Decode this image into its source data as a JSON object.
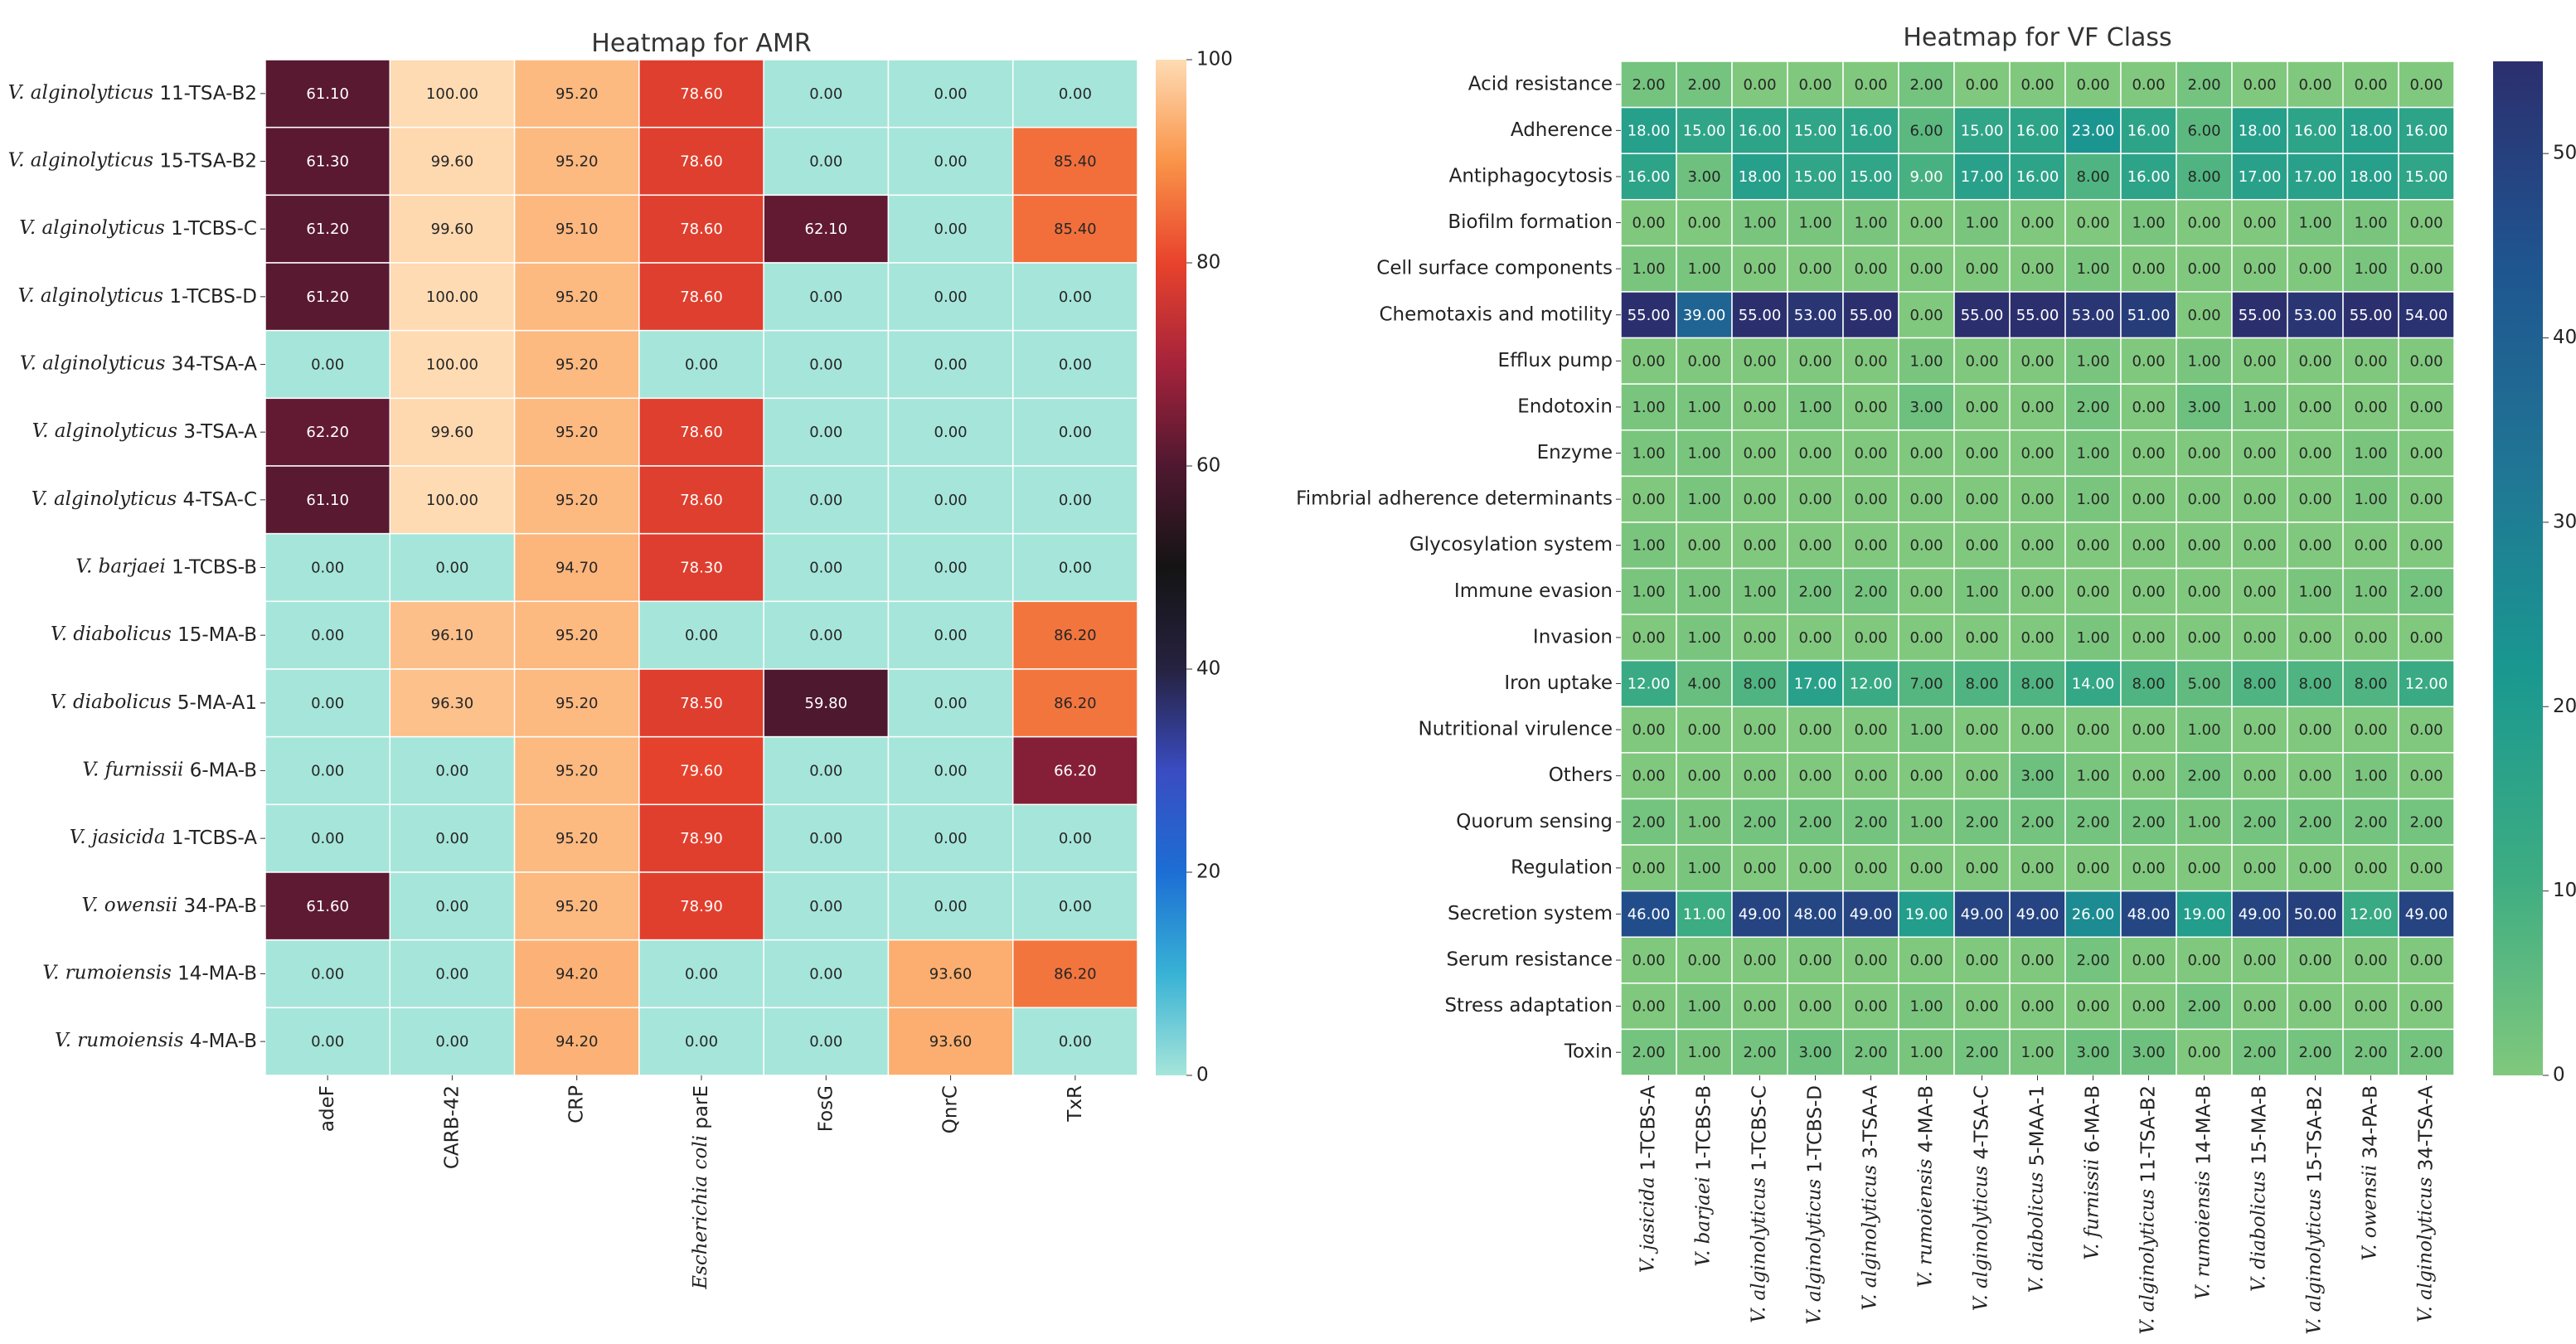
{
  "chart_data": [
    {
      "type": "heatmap",
      "title": "Heatmap for AMR",
      "colormap": "icefire",
      "vmin": 0,
      "vmax": 100,
      "colorbar_ticks": [
        0,
        20,
        40,
        60,
        80,
        100
      ],
      "rows": [
        [
          "V. alginolyticus",
          "11-TSA-B2"
        ],
        [
          "V. alginolyticus",
          "15-TSA-B2"
        ],
        [
          "V. alginolyticus",
          "1-TCBS-C"
        ],
        [
          "V. alginolyticus",
          "1-TCBS-D"
        ],
        [
          "V. alginolyticus",
          "34-TSA-A"
        ],
        [
          "V. alginolyticus",
          "3-TSA-A"
        ],
        [
          "V. alginolyticus",
          "4-TSA-C"
        ],
        [
          "V. barjaei",
          "1-TCBS-B"
        ],
        [
          "V. diabolicus",
          "15-MA-B"
        ],
        [
          "V. diabolicus",
          "5-MA-A1"
        ],
        [
          "V. furnissii",
          "6-MA-B"
        ],
        [
          "V. jasicida",
          "1-TCBS-A"
        ],
        [
          "V. owensii",
          "34-PA-B"
        ],
        [
          "V. rumoiensis",
          "14-MA-B"
        ],
        [
          "V. rumoiensis",
          "4-MA-B"
        ]
      ],
      "columns": [
        [
          "",
          "adeF"
        ],
        [
          "",
          "CARB-42"
        ],
        [
          "",
          "CRP"
        ],
        [
          "Escherichia coli",
          "parE"
        ],
        [
          "",
          "FosG"
        ],
        [
          "",
          "QnrC"
        ],
        [
          "",
          "TxR"
        ]
      ],
      "values": [
        [
          61.1,
          100.0,
          95.2,
          78.6,
          0.0,
          0.0,
          0.0
        ],
        [
          61.3,
          99.6,
          95.2,
          78.6,
          0.0,
          0.0,
          85.4
        ],
        [
          61.2,
          99.6,
          95.1,
          78.6,
          62.1,
          0.0,
          85.4
        ],
        [
          61.2,
          100.0,
          95.2,
          78.6,
          0.0,
          0.0,
          0.0
        ],
        [
          0.0,
          100.0,
          95.2,
          0.0,
          0.0,
          0.0,
          0.0
        ],
        [
          62.2,
          99.6,
          95.2,
          78.6,
          0.0,
          0.0,
          0.0
        ],
        [
          61.1,
          100.0,
          95.2,
          78.6,
          0.0,
          0.0,
          0.0
        ],
        [
          0.0,
          0.0,
          94.7,
          78.3,
          0.0,
          0.0,
          0.0
        ],
        [
          0.0,
          96.1,
          95.2,
          0.0,
          0.0,
          0.0,
          86.2
        ],
        [
          0.0,
          96.3,
          95.2,
          78.5,
          59.8,
          0.0,
          86.2
        ],
        [
          0.0,
          0.0,
          95.2,
          79.6,
          0.0,
          0.0,
          66.2
        ],
        [
          0.0,
          0.0,
          95.2,
          78.9,
          0.0,
          0.0,
          0.0
        ],
        [
          61.6,
          0.0,
          95.2,
          78.9,
          0.0,
          0.0,
          0.0
        ],
        [
          0.0,
          0.0,
          94.2,
          0.0,
          0.0,
          93.6,
          86.2
        ],
        [
          0.0,
          0.0,
          94.2,
          0.0,
          0.0,
          93.6,
          0.0
        ]
      ]
    },
    {
      "type": "heatmap",
      "title": "Heatmap for VF Class",
      "colormap": "crest",
      "vmin": 0,
      "vmax": 55,
      "colorbar_ticks": [
        0,
        10,
        20,
        30,
        40,
        50
      ],
      "rows": [
        "Acid resistance",
        "Adherence",
        "Antiphagocytosis",
        "Biofilm formation",
        "Cell surface components",
        "Chemotaxis and motility",
        "Efflux pump",
        "Endotoxin",
        "Enzyme",
        "Fimbrial adherence determinants",
        "Glycosylation system",
        "Immune evasion",
        "Invasion",
        "Iron uptake",
        "Nutritional virulence",
        "Others",
        "Quorum sensing",
        "Regulation",
        "Secretion system",
        "Serum resistance",
        "Stress adaptation",
        "Toxin"
      ],
      "columns": [
        [
          "V. jasicida",
          "1-TCBS-A"
        ],
        [
          "V. barjaei",
          "1-TCBS-B"
        ],
        [
          "V. alginolyticus",
          "1-TCBS-C"
        ],
        [
          "V. alginolyticus",
          "1-TCBS-D"
        ],
        [
          "V. alginolyticus",
          "3-TSA-A"
        ],
        [
          "V. rumoiensis",
          "4-MA-B"
        ],
        [
          "V. alginolyticus",
          "4-TSA-C"
        ],
        [
          "V. diabolicus",
          "5-MAA-1"
        ],
        [
          "V. furnissii",
          "6-MA-B"
        ],
        [
          "V. alginolyticus",
          "11-TSA-B2"
        ],
        [
          "V. rumoiensis",
          "14-MA-B"
        ],
        [
          "V. diabolicus",
          "15-MA-B"
        ],
        [
          "V. alginolyticus",
          "15-TSA-B2"
        ],
        [
          "V. owensii",
          "34-PA-B"
        ],
        [
          "V. alginolyticus",
          "34-TSA-A"
        ]
      ],
      "values": [
        [
          2,
          2,
          0,
          0,
          0,
          2,
          0,
          0,
          0,
          0,
          2,
          0,
          0,
          0,
          0
        ],
        [
          18,
          15,
          16,
          15,
          16,
          6,
          15,
          16,
          23,
          16,
          6,
          18,
          16,
          18,
          16
        ],
        [
          16,
          3,
          18,
          15,
          15,
          9,
          17,
          16,
          8,
          16,
          8,
          17,
          17,
          18,
          15
        ],
        [
          0,
          0,
          1,
          1,
          1,
          0,
          1,
          0,
          0,
          1,
          0,
          0,
          1,
          1,
          0
        ],
        [
          1,
          1,
          0,
          0,
          0,
          0,
          0,
          0,
          1,
          0,
          0,
          0,
          0,
          1,
          0
        ],
        [
          55,
          39,
          55,
          53,
          55,
          0,
          55,
          55,
          53,
          51,
          0,
          55,
          53,
          55,
          54
        ],
        [
          0,
          0,
          0,
          0,
          0,
          1,
          0,
          0,
          1,
          0,
          1,
          0,
          0,
          0,
          0
        ],
        [
          1,
          1,
          0,
          1,
          0,
          3,
          0,
          0,
          2,
          0,
          3,
          1,
          0,
          0,
          0
        ],
        [
          1,
          1,
          0,
          0,
          0,
          0,
          0,
          0,
          1,
          0,
          0,
          0,
          0,
          1,
          0
        ],
        [
          0,
          1,
          0,
          0,
          0,
          0,
          0,
          0,
          1,
          0,
          0,
          0,
          0,
          1,
          0
        ],
        [
          1,
          0,
          0,
          0,
          0,
          0,
          0,
          0,
          0,
          0,
          0,
          0,
          0,
          0,
          0
        ],
        [
          1,
          1,
          1,
          2,
          2,
          0,
          1,
          0,
          0,
          0,
          0,
          0,
          1,
          1,
          2
        ],
        [
          0,
          1,
          0,
          0,
          0,
          0,
          0,
          0,
          1,
          0,
          0,
          0,
          0,
          0,
          0
        ],
        [
          12,
          4,
          8,
          17,
          12,
          7,
          8,
          8,
          14,
          8,
          5,
          8,
          8,
          8,
          12
        ],
        [
          0,
          0,
          0,
          0,
          0,
          1,
          0,
          0,
          0,
          0,
          1,
          0,
          0,
          0,
          0
        ],
        [
          0,
          0,
          0,
          0,
          0,
          0,
          0,
          3,
          1,
          0,
          2,
          0,
          0,
          1,
          0
        ],
        [
          2,
          1,
          2,
          2,
          2,
          1,
          2,
          2,
          2,
          2,
          1,
          2,
          2,
          2,
          2
        ],
        [
          0,
          1,
          0,
          0,
          0,
          0,
          0,
          0,
          0,
          0,
          0,
          0,
          0,
          0,
          0
        ],
        [
          46,
          11,
          49,
          48,
          49,
          19,
          49,
          49,
          26,
          48,
          19,
          49,
          50,
          12,
          49
        ],
        [
          0,
          0,
          0,
          0,
          0,
          0,
          0,
          0,
          2,
          0,
          0,
          0,
          0,
          0,
          0
        ],
        [
          0,
          1,
          0,
          0,
          0,
          1,
          0,
          0,
          0,
          0,
          2,
          0,
          0,
          0,
          0
        ],
        [
          2,
          1,
          2,
          3,
          2,
          1,
          2,
          1,
          3,
          3,
          0,
          2,
          2,
          2,
          2
        ]
      ]
    }
  ]
}
